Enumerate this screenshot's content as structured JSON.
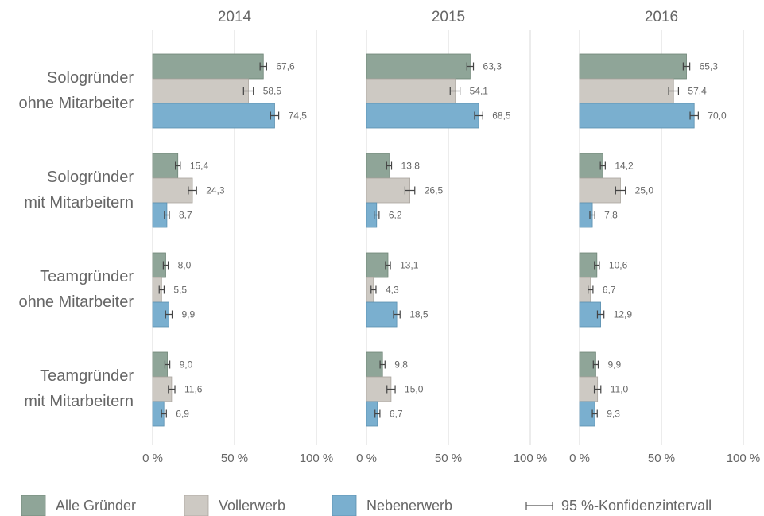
{
  "chart_data": {
    "type": "bar",
    "orientation": "horizontal",
    "categories": [
      [
        "Sologründer",
        "ohne Mitarbeiter"
      ],
      [
        "Sologründer",
        "mit Mitarbeitern"
      ],
      [
        "Teamgründer",
        "ohne Mitarbeiter"
      ],
      [
        "Teamgründer",
        "mit Mitarbeitern"
      ]
    ],
    "series": [
      {
        "name": "Alle Gründer",
        "color": "#8fa598"
      },
      {
        "name": "Vollerwerb",
        "color": "#cdc9c3"
      },
      {
        "name": "Nebenerwerb",
        "color": "#7aafcf"
      }
    ],
    "error_label": "95 %-Konfidenzintervall",
    "xlim": [
      0,
      100
    ],
    "xticks": [
      {
        "value": 0,
        "label": "0 %"
      },
      {
        "value": 50,
        "label": "50 %"
      },
      {
        "value": 100,
        "label": "100 %"
      }
    ],
    "grid": true,
    "panels": [
      {
        "title": "2014",
        "series": [
          {
            "values": [
              67.6,
              15.4,
              8.0,
              9.0
            ],
            "errors": [
              2,
              1.5,
              1.5,
              1.5
            ],
            "value_labels": [
              "67,6",
              "15,4",
              "8,0",
              "9,0"
            ]
          },
          {
            "values": [
              58.5,
              24.3,
              5.5,
              11.6
            ],
            "errors": [
              3,
              2.5,
              1.5,
              2
            ],
            "value_labels": [
              "58,5",
              "24,3",
              "5,5",
              "11,6"
            ]
          },
          {
            "values": [
              74.5,
              8.7,
              9.9,
              6.9
            ],
            "errors": [
              2.5,
              1.5,
              2,
              1.5
            ],
            "value_labels": [
              "74,5",
              "8,7",
              "9,9",
              "6,9"
            ]
          }
        ]
      },
      {
        "title": "2015",
        "series": [
          {
            "values": [
              63.3,
              13.8,
              13.1,
              9.8
            ],
            "errors": [
              2,
              1.5,
              1.5,
              1.5
            ],
            "value_labels": [
              "63,3",
              "13,8",
              "13,1",
              "9,8"
            ]
          },
          {
            "values": [
              54.1,
              26.5,
              4.3,
              15.0
            ],
            "errors": [
              3,
              3,
              1.5,
              2.5
            ],
            "value_labels": [
              "54,1",
              "26,5",
              "4,3",
              "15,0"
            ]
          },
          {
            "values": [
              68.5,
              6.2,
              18.5,
              6.7
            ],
            "errors": [
              2.5,
              1.5,
              2,
              1.5
            ],
            "value_labels": [
              "68,5",
              "6,2",
              "18,5",
              "6,7"
            ]
          }
        ]
      },
      {
        "title": "2016",
        "series": [
          {
            "values": [
              65.3,
              14.2,
              10.6,
              9.9
            ],
            "errors": [
              2,
              1.5,
              1.5,
              1.5
            ],
            "value_labels": [
              "65,3",
              "14,2",
              "10,6",
              "9,9"
            ]
          },
          {
            "values": [
              57.4,
              25.0,
              6.7,
              11.0
            ],
            "errors": [
              3,
              3,
              1.5,
              2
            ],
            "value_labels": [
              "57,4",
              "25,0",
              "6,7",
              "11,0"
            ]
          },
          {
            "values": [
              70.0,
              7.8,
              12.9,
              9.3
            ],
            "errors": [
              2.5,
              1.5,
              2,
              1.5
            ],
            "value_labels": [
              "70,0",
              "7,8",
              "12,9",
              "9,3"
            ]
          }
        ]
      }
    ]
  }
}
